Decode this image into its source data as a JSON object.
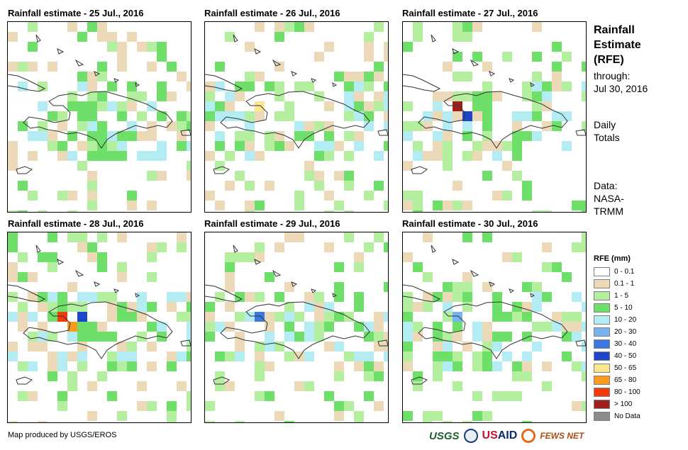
{
  "panels": [
    {
      "title": "Rainfall estimate - 25 Jul., 2016",
      "seed": 25,
      "heavy": []
    },
    {
      "title": "Rainfall estimate - 26 Jul., 2016",
      "seed": 26,
      "heavy": [
        "50 - 65"
      ]
    },
    {
      "title": "Rainfall estimate - 27 Jul., 2016",
      "seed": 27,
      "heavy": [
        "> 100",
        "40 - 50"
      ]
    },
    {
      "title": "Rainfall estimate - 28 Jul., 2016",
      "seed": 28,
      "heavy": [
        "80 - 100",
        "65 - 80",
        "40 - 50"
      ]
    },
    {
      "title": "Rainfall estimate - 29 Jul., 2016",
      "seed": 29,
      "heavy": [
        "30 - 40"
      ]
    },
    {
      "title": "Rainfall estimate - 30 Jul., 2016",
      "seed": 30,
      "heavy": [
        "20 - 30"
      ]
    }
  ],
  "sidebar": {
    "title_line1": "Rainfall",
    "title_line2": "Estimate",
    "title_line3": "(RFE)",
    "through_label": "through:",
    "through_date": "Jul 30, 2016",
    "daily_line1": "Daily",
    "daily_line2": "Totals",
    "data_line1": "Data:",
    "data_line2": "NASA-",
    "data_line3": "TRMM"
  },
  "legend": {
    "title": "RFE (mm)",
    "items": [
      {
        "label": "0 - 0.1",
        "color": "#ffffff"
      },
      {
        "label": "0.1 - 1",
        "color": "#ecd9b8"
      },
      {
        "label": "1 - 5",
        "color": "#b4efa0"
      },
      {
        "label": "5 - 10",
        "color": "#6ee06a"
      },
      {
        "label": "10 - 20",
        "color": "#b4ecf4"
      },
      {
        "label": "20 - 30",
        "color": "#78b4f0"
      },
      {
        "label": "30 - 40",
        "color": "#3c78e0"
      },
      {
        "label": "40 - 50",
        "color": "#1e46c8"
      },
      {
        "label": "50 - 65",
        "color": "#fae68c"
      },
      {
        "label": "65 - 80",
        "color": "#fa9b1e"
      },
      {
        "label": "80 - 100",
        "color": "#f03c0a"
      },
      {
        "label": "> 100",
        "color": "#a01e1e"
      },
      {
        "label": "No Data",
        "color": "#8c8c8c"
      }
    ]
  },
  "footer": {
    "credit": "Map produced by USGS/EROS",
    "logo_usgs": "USGS",
    "logo_usaid_a": "US",
    "logo_usaid_b": "AID",
    "logo_fews": "FEWS NET"
  }
}
